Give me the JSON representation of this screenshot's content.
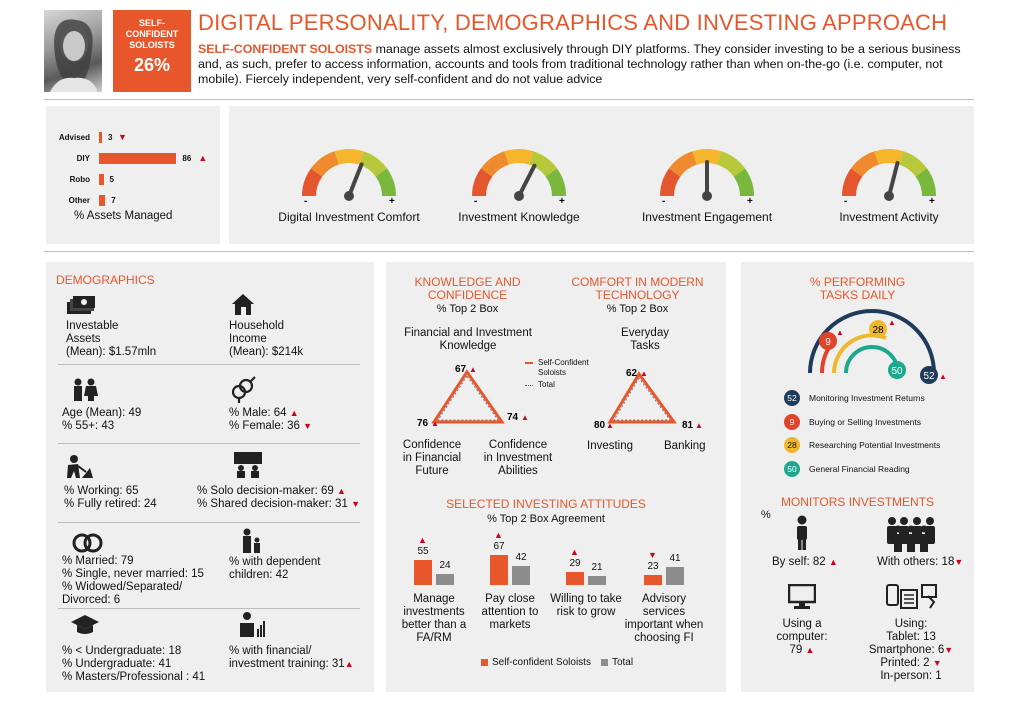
{
  "header": {
    "badge_line1": "SELF-",
    "badge_line2": "CONFIDENT",
    "badge_line3": "SOLOISTS",
    "badge_pct": "26%",
    "title": "DIGITAL PERSONALITY, DEMOGRAPHICS AND INVESTING APPROACH",
    "segment_name": "SELF-CONFIDENT SOLOISTS",
    "description": " manage assets almost exclusively through DIY platforms. They consider investing to be a serious business and, as such, prefer to access information, accounts and tools from traditional technology rather than when on-the-go (i.e. computer, not mobile). Fiercely independent, very self-confident and do not value advice"
  },
  "assets_managed": {
    "caption": "% Assets Managed",
    "rows": [
      {
        "label": "Advised",
        "value": "3",
        "arrow": "▼"
      },
      {
        "label": "DIY",
        "value": "86",
        "arrow": "▲"
      },
      {
        "label": "Robo",
        "value": "5",
        "arrow": ""
      },
      {
        "label": "Other",
        "value": "7",
        "arrow": ""
      }
    ],
    "bar_values": [
      3,
      86,
      5,
      7
    ]
  },
  "gauges": [
    {
      "label": "Digital Investment Comfort",
      "level": 0.62
    },
    {
      "label": "Investment Knowledge",
      "level": 0.65
    },
    {
      "label": "Investment Engagement",
      "level": 0.5
    },
    {
      "label": "Investment Activity",
      "level": 0.58
    }
  ],
  "gauge_minus": "-",
  "gauge_plus": "+",
  "demographics": {
    "title": "DEMOGRAPHICS",
    "assets_l1": "Investable",
    "assets_l2": "Assets",
    "assets_l3": "(Mean): $1.57mln",
    "income_l1": "Household",
    "income_l2": "Income",
    "income_l3": "(Mean): $214k",
    "age_mean": "Age (Mean): 49",
    "age_55": "% 55+: 43",
    "male": "% Male: 64",
    "female": "% Female: 36",
    "working": "% Working: 65",
    "retired": "% Fully retired: 24",
    "solo": "% Solo decision-maker: 69",
    "shared": "% Shared decision-maker: 31",
    "married": "% Married: 79",
    "single": "% Single, never married: 15",
    "widowed": "% Widowed/Separated/",
    "divorced": "Divorced: 6",
    "dependents_l1": "% with dependent",
    "dependents_l2": "children: 42",
    "under_grad": "% < Undergraduate: 18",
    "undergrad": "% Undergraduate: 41",
    "masters": "% Masters/Professional : 41",
    "training_l1": "% with financial/",
    "training_l2": "investment training: 31"
  },
  "knowledge": {
    "title_l1": "KNOWLEDGE AND",
    "title_l2": "CONFIDENCE",
    "sub": "% Top 2 Box",
    "top_l1": "Financial and Investment",
    "top_l2": "Knowledge",
    "top_val": "67",
    "left_val": "76",
    "right_val": "74",
    "left_l1": "Confidence",
    "left_l2": "in Financial",
    "left_l3": "Future",
    "right_l1": "Confidence",
    "right_l2": "in Investment",
    "right_l3": "Abilities",
    "legend_1a": "Self-Confident",
    "legend_1b": "Soloists",
    "legend_2": "Total"
  },
  "comfort": {
    "title_l1": "COMFORT IN MODERN",
    "title_l2": "TECHNOLOGY",
    "sub": "% Top 2 Box",
    "top_l1": "Everyday",
    "top_l2": "Tasks",
    "top_val": "62",
    "left_val": "80",
    "right_val": "81",
    "left_label": "Investing",
    "right_label": "Banking"
  },
  "attitudes": {
    "title": "SELECTED INVESTING ATTITUDES",
    "sub": "% Top 2 Box Agreement",
    "groups": [
      {
        "label_l1": "Manage",
        "label_l2": "investments",
        "label_l3": "better than a",
        "label_l4": "FA/RM",
        "seg": "55",
        "total": "24",
        "arrow": "▲"
      },
      {
        "label_l1": "Pay close",
        "label_l2": "attention to",
        "label_l3": "markets",
        "label_l4": "",
        "seg": "67",
        "total": "42",
        "arrow": "▲"
      },
      {
        "label_l1": "Willing to take",
        "label_l2": "risk to grow",
        "label_l3": "",
        "label_l4": "",
        "seg": "29",
        "total": "21",
        "arrow": "▲"
      },
      {
        "label_l1": "Advisory",
        "label_l2": "services",
        "label_l3": "important when",
        "label_l4": "choosing FI",
        "seg": "23",
        "total": "41",
        "arrow": "▼"
      }
    ],
    "legend_seg": "Self-confident Soloists",
    "legend_total": "Total",
    "seg_color": "#e8572b",
    "total_color": "#8c8c8c"
  },
  "tasks": {
    "title_l1": "% PERFORMING",
    "title_l2": "TASKS DAILY",
    "items": [
      {
        "value": "52",
        "label": "Monitoring Investment Returns",
        "color": "#1f3b5c"
      },
      {
        "value": "9",
        "label": "Buying or Selling Investments",
        "color": "#e0452a"
      },
      {
        "value": "28",
        "label": "Researching Potential Investments",
        "color": "#f1b72b"
      },
      {
        "value": "50",
        "label": "General Financial Reading",
        "color": "#1aa98d"
      }
    ]
  },
  "monitors": {
    "title": "MONITORS INVESTMENTS",
    "pct": "%",
    "by_self": "By self: 82",
    "with_others": "With others: 18",
    "computer_l1": "Using a",
    "computer_l2": "computer:",
    "computer_l3": "79",
    "using": "Using:",
    "tablet": "Tablet: 13",
    "smartphone": "Smartphone: 6",
    "printed": "Printed: 2",
    "in_person": "In-person: 1"
  }
}
